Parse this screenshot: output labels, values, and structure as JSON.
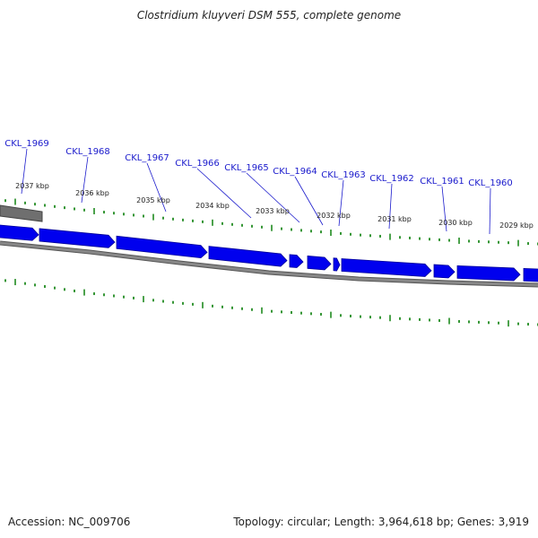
{
  "title": "Clostridium kluyveri DSM 555, complete genome",
  "footer": {
    "accession": "Accession: NC_009706",
    "topology": "Topology: circular; Length: 3,964,618 bp; Genes: 3,919"
  },
  "colors": {
    "gene_fill": "#0000ee",
    "gene_stroke": "#00009a",
    "label": "#1a1acc",
    "tick": "#1f8a1f",
    "backbone": "#888888",
    "backbone_shadow": "#555555",
    "scale_text": "#222222"
  },
  "scale_labels": [
    "2037 kbp",
    "2036 kbp",
    "2035 kbp",
    "2034 kbp",
    "2033 kbp",
    "2032 kbp",
    "2031 kbp",
    "2030 kbp",
    "2029 kbp"
  ],
  "genes": [
    {
      "name": "CKL_1969"
    },
    {
      "name": "CKL_1968"
    },
    {
      "name": "CKL_1967"
    },
    {
      "name": "CKL_1966"
    },
    {
      "name": "CKL_1965"
    },
    {
      "name": "CKL_1964"
    },
    {
      "name": "CKL_1963"
    },
    {
      "name": "CKL_1962"
    },
    {
      "name": "CKL_1961"
    },
    {
      "name": "CKL_1960"
    }
  ]
}
